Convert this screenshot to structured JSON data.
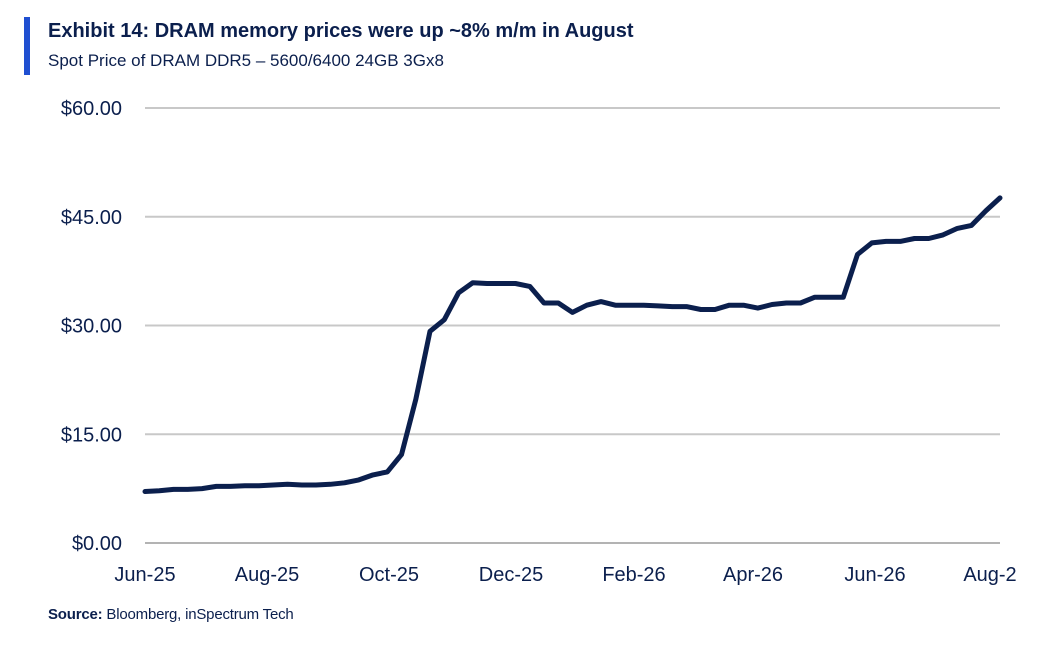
{
  "header": {
    "title": "Exhibit 14: DRAM memory prices were up ~8% m/m in August",
    "subtitle": "Spot Price of DRAM DDR5 – 5600/6400 24GB 3Gx8"
  },
  "footer": {
    "source_label": "Source:",
    "source_text": " Bloomberg, inSpectrum Tech"
  },
  "colors": {
    "accent": "#1f4fd1",
    "line": "#0b1f4d",
    "grid": "#c8c8c8",
    "text": "#0b1f4d"
  },
  "chart_data": {
    "type": "line",
    "title": "Spot Price of DRAM DDR5 – 5600/6400 24GB 3Gx8",
    "xlabel": "",
    "ylabel": "",
    "ylim": [
      0,
      60
    ],
    "y_ticks": [
      0,
      15,
      30,
      45,
      60
    ],
    "y_tick_labels": [
      "$0.00",
      "$15.00",
      "$30.00",
      "$45.00",
      "$60.00"
    ],
    "x_tick_labels": [
      "Jun-25",
      "Aug-25",
      "Oct-25",
      "Dec-25",
      "Feb-26",
      "Apr-26",
      "Jun-26",
      "Aug-2"
    ],
    "grid": true,
    "legend": "none",
    "series": [
      {
        "values": [
          7.1,
          7.2,
          7.4,
          7.4,
          7.5,
          7.8,
          7.8,
          7.9,
          7.9,
          8.0,
          8.1,
          8.0,
          8.0,
          8.1,
          8.3,
          8.7,
          9.4,
          9.8,
          12.2,
          19.8,
          29.2,
          30.8,
          34.5,
          35.9,
          35.8,
          35.8,
          35.8,
          35.4,
          33.1,
          33.1,
          31.8,
          32.8,
          33.3,
          32.8,
          32.8,
          32.8,
          32.7,
          32.6,
          32.6,
          32.2,
          32.2,
          32.8,
          32.8,
          32.4,
          32.9,
          33.1,
          33.1,
          33.9,
          33.9,
          33.9,
          39.8,
          41.4,
          41.6,
          41.6,
          42.0,
          42.0,
          42.5,
          43.4,
          43.8,
          45.8,
          47.6
        ]
      }
    ]
  }
}
